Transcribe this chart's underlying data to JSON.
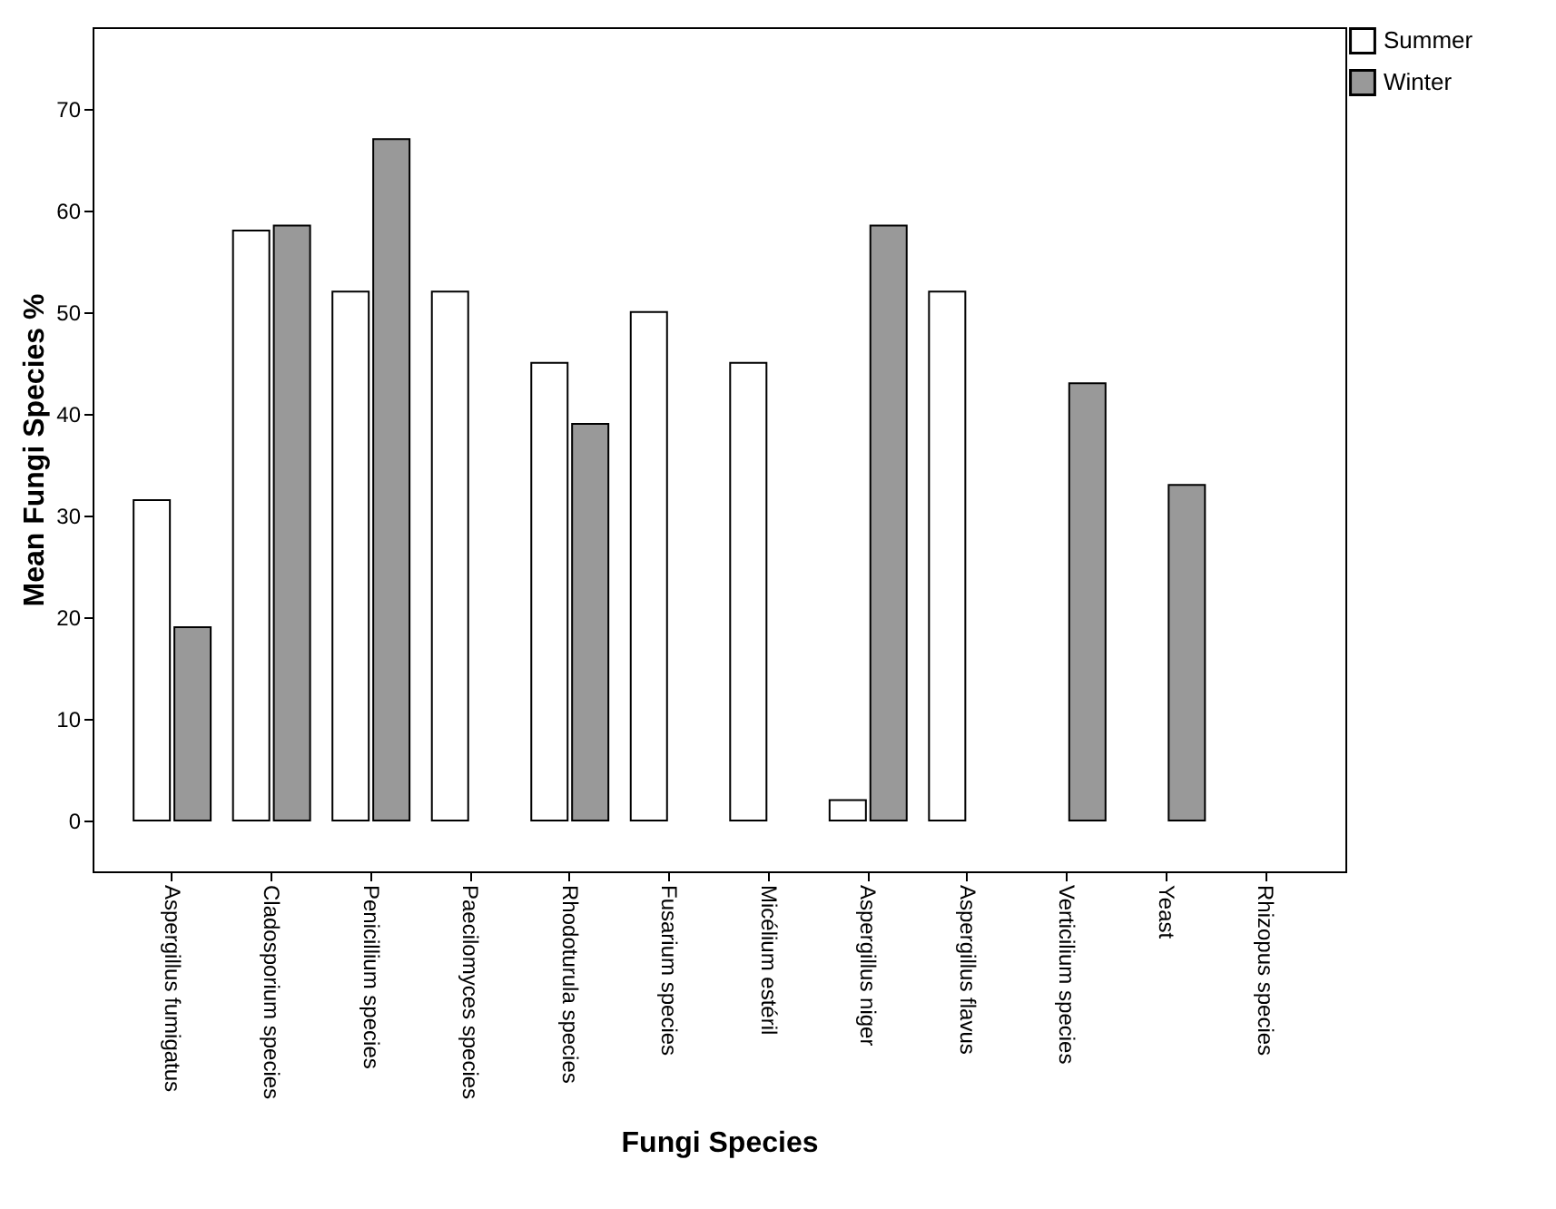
{
  "chart_data": {
    "type": "bar",
    "xlabel": "Fungi Species",
    "ylabel": "Mean Fungi Species %",
    "categories": [
      "Aspergillus fumigatus",
      "Cladosporium species",
      "Penicillium species",
      "Paecilomyces species",
      "Rhodoturula species",
      "Fusarium species",
      "Micélium estéril",
      "Aspergillus niger",
      "Aspergillus flavus",
      "Verticilium species",
      "Yeast",
      "Rhizopus species"
    ],
    "series": [
      {
        "name": "Summer",
        "color": "#ffffff",
        "values": [
          31.5,
          58,
          52,
          52,
          45,
          50,
          45,
          2,
          52,
          null,
          null,
          null
        ]
      },
      {
        "name": "Winter",
        "color": "#999999",
        "values": [
          19,
          58.5,
          67,
          null,
          39,
          null,
          null,
          58.5,
          null,
          43,
          33,
          null
        ]
      }
    ],
    "ylim": [
      -5,
      78
    ],
    "yticks": [
      0,
      10,
      20,
      30,
      40,
      50,
      60,
      70
    ],
    "grid": false,
    "legend": "top right"
  }
}
